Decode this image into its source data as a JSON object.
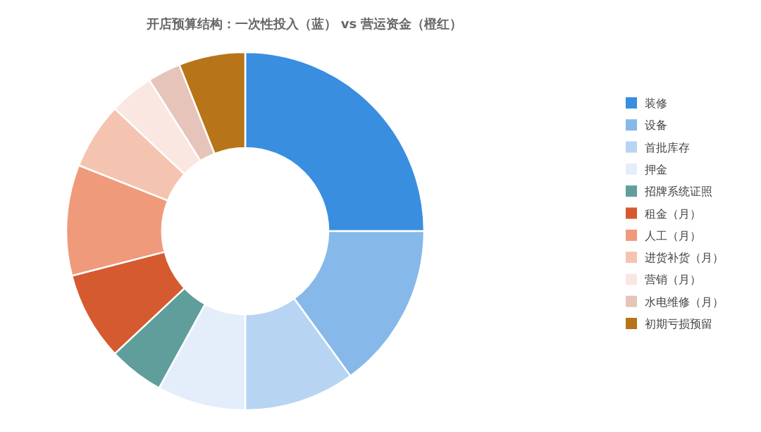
{
  "chart_data": {
    "type": "donut",
    "title": "开店预算结构：一次性投入（蓝） vs 营运资金（橙红）",
    "categories": [
      "装修",
      "设备",
      "首批库存",
      "押金",
      "招牌系统证照",
      "租金（月）",
      "人工（月）",
      "进货补货（月）",
      "营销（月）",
      "水电维修（月）",
      "初期亏损预留"
    ],
    "values": [
      25,
      15,
      10,
      8,
      5,
      8,
      10,
      6,
      4,
      3,
      6
    ],
    "colors": [
      "#3a8ee0",
      "#86b8ea",
      "#b7d4f3",
      "#e4eefa",
      "#5f9e9b",
      "#d65a2f",
      "#ef9a7b",
      "#f5c4b0",
      "#fae7e2",
      "#e6c4b9",
      "#b87418"
    ],
    "legend": "right"
  }
}
